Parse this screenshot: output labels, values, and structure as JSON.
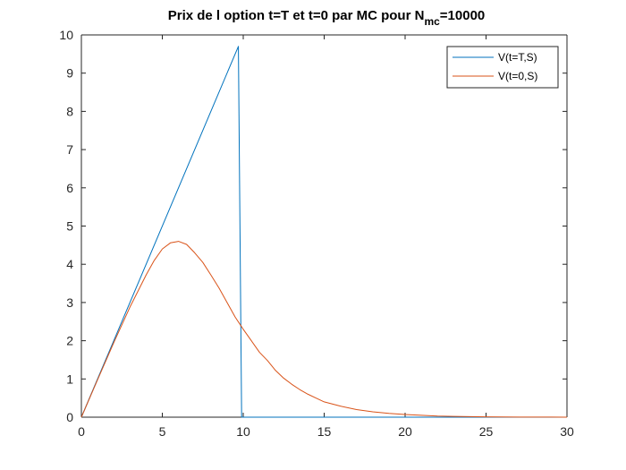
{
  "chart_data": {
    "type": "line",
    "title": "Prix de l option t=T et t=0 par MC pour N",
    "title_subscript": "mc",
    "title_suffix": "=10000",
    "xlabel": "",
    "ylabel": "",
    "xlim": [
      0,
      30
    ],
    "ylim": [
      0,
      10
    ],
    "x_ticks": [
      0,
      5,
      10,
      15,
      20,
      25,
      30
    ],
    "y_ticks": [
      0,
      1,
      2,
      3,
      4,
      5,
      6,
      7,
      8,
      9,
      10
    ],
    "grid": false,
    "legend_position": "top-right",
    "series": [
      {
        "name": "V(t=T,S)",
        "color": "#0072BD",
        "x": [
          0,
          9.7,
          9.9,
          30
        ],
        "y": [
          0,
          9.7,
          0,
          0
        ]
      },
      {
        "name": "V(t=0,S)",
        "color": "#D95319",
        "x": [
          0,
          1,
          2,
          3,
          3.5,
          4,
          4.5,
          5,
          5.5,
          6,
          6.5,
          7,
          7.5,
          8,
          8.5,
          9,
          9.5,
          10,
          10.5,
          11,
          11.5,
          12,
          12.5,
          13,
          13.5,
          14,
          14.5,
          15,
          16,
          17,
          18,
          19,
          20,
          21,
          22,
          23,
          24,
          25,
          26,
          27,
          28,
          29,
          30
        ],
        "y": [
          0,
          0.98,
          1.95,
          2.88,
          3.3,
          3.72,
          4.1,
          4.4,
          4.56,
          4.6,
          4.52,
          4.3,
          4.05,
          3.72,
          3.38,
          3.0,
          2.62,
          2.3,
          2.0,
          1.7,
          1.48,
          1.22,
          1.02,
          0.86,
          0.72,
          0.6,
          0.5,
          0.4,
          0.29,
          0.2,
          0.14,
          0.1,
          0.07,
          0.05,
          0.03,
          0.02,
          0.014,
          0.01,
          0.006,
          0.004,
          0.003,
          0.002,
          0.001
        ]
      }
    ]
  }
}
